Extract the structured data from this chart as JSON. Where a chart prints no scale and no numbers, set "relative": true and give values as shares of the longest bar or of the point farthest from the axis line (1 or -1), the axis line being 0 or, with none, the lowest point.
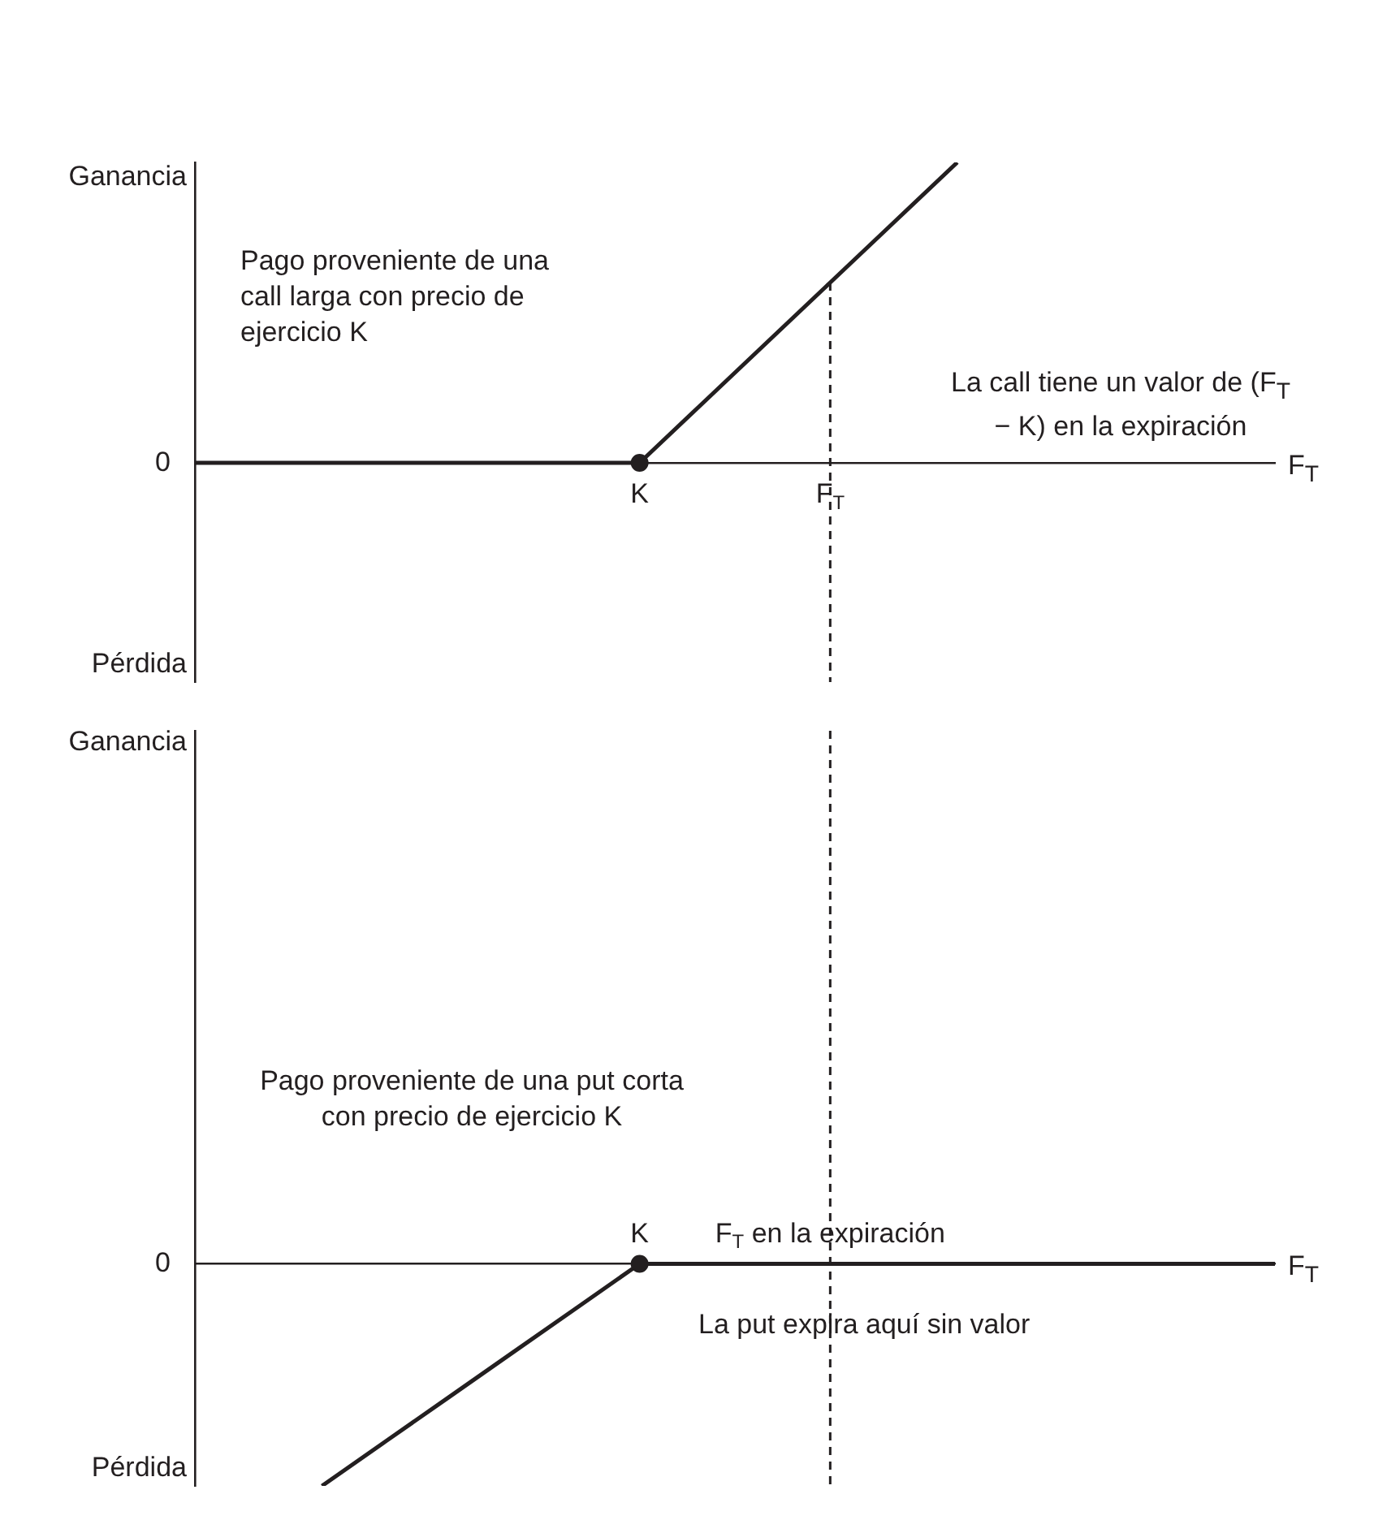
{
  "chart_data": [
    {
      "type": "line",
      "relative": true,
      "ylabel": "Ganancia",
      "xlabel": "F$_{T}$",
      "categories": [
        null,
        null,
        null,
        null,
        null,
        null,
        null,
        "K",
        null,
        null,
        "F$_{T}$",
        null,
        null,
        null,
        null,
        null,
        null,
        null
      ],
      "series": [
        {
          "type": "line",
          "color": "#231f20",
          "values": [
            0,
            0,
            0,
            0,
            0,
            0,
            0,
            0,
            0.2,
            0.4,
            0.6,
            0.8,
            1,
            null,
            null,
            null,
            null,
            null
          ]
        },
        {
          "type": "scatter",
          "color": "#231f20",
          "marker": "circle",
          "values": [
            null,
            null,
            null,
            null,
            null,
            null,
            null,
            0,
            null,
            null,
            null,
            null,
            null,
            null,
            null,
            null,
            null,
            null
          ]
        }
      ],
      "ref_lines": [
        {
          "axis": "x",
          "value": "F$_{T}$",
          "line_style": "dashed",
          "color": "#231f20"
        }
      ],
      "annotations": [
        "0",
        "Pérdida",
        "Pago proveniente de una call larga con precio de ejercicio K",
        "La call tiene un valor de (F$_{T}$ − K) en la expiración"
      ]
    },
    {
      "type": "line",
      "relative": true,
      "xlabel": "F$_{T}$",
      "categories": [
        null,
        null,
        null,
        null,
        null,
        null,
        null,
        "K",
        null,
        null,
        "F$_{T}$ en la expiración",
        null,
        null,
        null,
        null,
        null,
        null,
        null
      ],
      "series": [
        {
          "type": "line",
          "color": "#231f20",
          "values": [
            null,
            null,
            -1,
            -0.8,
            -0.6,
            -0.4,
            -0.2,
            0,
            0,
            0,
            0,
            0,
            0,
            0,
            0,
            0,
            0,
            0
          ]
        },
        {
          "type": "scatter",
          "color": "#231f20",
          "marker": "circle",
          "values": [
            null,
            null,
            null,
            null,
            null,
            null,
            null,
            0,
            null,
            null,
            null,
            null,
            null,
            null,
            null,
            null,
            null,
            null
          ]
        }
      ],
      "ref_lines": [
        {
          "axis": "x",
          "value": "F$_{T}$ en la expiración",
          "line_style": "dashed",
          "color": "#231f20"
        }
      ],
      "annotations": [
        "0",
        "Ganancia",
        "Pérdida",
        "Pago proveniente de una put corta con precio de ejercicio K",
        "La put expira aquí sin valor"
      ]
    }
  ]
}
